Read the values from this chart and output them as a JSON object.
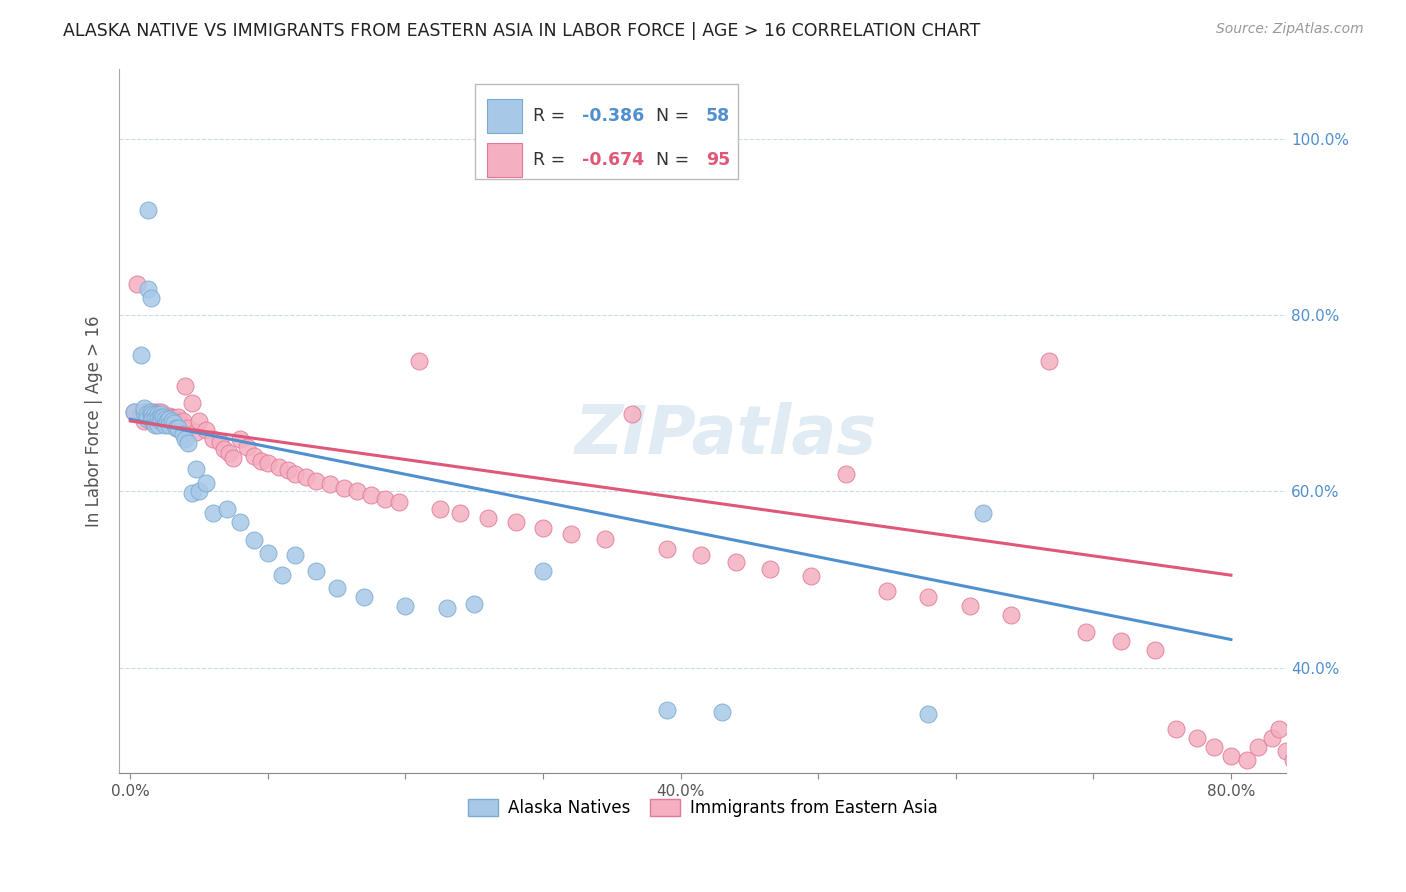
{
  "title": "ALASKA NATIVE VS IMMIGRANTS FROM EASTERN ASIA IN LABOR FORCE | AGE > 16 CORRELATION CHART",
  "source": "Source: ZipAtlas.com",
  "ylabel": "In Labor Force | Age > 16",
  "xlabel_ticks": [
    "0.0%",
    "",
    "",
    "",
    "40.0%",
    "",
    "",
    "",
    "80.0%"
  ],
  "xlabel_vals": [
    0.0,
    0.1,
    0.2,
    0.3,
    0.4,
    0.5,
    0.6,
    0.7,
    0.8
  ],
  "ytick_labels": [
    "40.0%",
    "60.0%",
    "80.0%",
    "100.0%"
  ],
  "ytick_vals": [
    0.4,
    0.6,
    0.8,
    1.0
  ],
  "ylim": [
    0.28,
    1.08
  ],
  "xlim": [
    -0.008,
    0.84
  ],
  "series1_color": "#a8c8e8",
  "series1_edge": "#7aaacf",
  "series2_color": "#f4b0c0",
  "series2_edge": "#e07898",
  "line1_color": "#5090d0",
  "line2_color": "#e05878",
  "R1": -0.386,
  "N1": 58,
  "R2": -0.674,
  "N2": 95,
  "legend_label1": "Alaska Natives",
  "legend_label2": "Immigrants from Eastern Asia",
  "watermark": "ZIPatlas",
  "line1_x0": 0.0,
  "line1_x1": 0.8,
  "line1_y0": 0.682,
  "line1_y1": 0.432,
  "line2_x0": 0.0,
  "line2_x1": 0.8,
  "line2_y0": 0.68,
  "line2_y1": 0.505,
  "series1_x": [
    0.003,
    0.008,
    0.01,
    0.01,
    0.012,
    0.012,
    0.013,
    0.013,
    0.015,
    0.015,
    0.015,
    0.015,
    0.016,
    0.016,
    0.018,
    0.018,
    0.018,
    0.02,
    0.02,
    0.02,
    0.022,
    0.022,
    0.022,
    0.024,
    0.025,
    0.025,
    0.027,
    0.028,
    0.028,
    0.03,
    0.032,
    0.033,
    0.035,
    0.038,
    0.04,
    0.042,
    0.045,
    0.048,
    0.05,
    0.055,
    0.06,
    0.07,
    0.08,
    0.09,
    0.1,
    0.11,
    0.12,
    0.135,
    0.15,
    0.17,
    0.2,
    0.23,
    0.25,
    0.3,
    0.39,
    0.43,
    0.58,
    0.62
  ],
  "series1_y": [
    0.69,
    0.755,
    0.69,
    0.695,
    0.688,
    0.682,
    0.92,
    0.83,
    0.688,
    0.82,
    0.682,
    0.69,
    0.688,
    0.682,
    0.688,
    0.682,
    0.676,
    0.688,
    0.682,
    0.676,
    0.688,
    0.685,
    0.68,
    0.685,
    0.682,
    0.676,
    0.68,
    0.682,
    0.676,
    0.68,
    0.678,
    0.672,
    0.672,
    0.665,
    0.66,
    0.655,
    0.598,
    0.625,
    0.6,
    0.61,
    0.575,
    0.58,
    0.565,
    0.545,
    0.53,
    0.505,
    0.528,
    0.51,
    0.49,
    0.48,
    0.47,
    0.468,
    0.472,
    0.51,
    0.352,
    0.35,
    0.348,
    0.575
  ],
  "series2_x": [
    0.003,
    0.005,
    0.008,
    0.01,
    0.01,
    0.01,
    0.012,
    0.012,
    0.013,
    0.015,
    0.015,
    0.015,
    0.015,
    0.016,
    0.016,
    0.018,
    0.018,
    0.02,
    0.02,
    0.02,
    0.022,
    0.022,
    0.022,
    0.024,
    0.025,
    0.025,
    0.027,
    0.028,
    0.028,
    0.03,
    0.032,
    0.033,
    0.035,
    0.035,
    0.038,
    0.04,
    0.042,
    0.045,
    0.048,
    0.05,
    0.055,
    0.06,
    0.065,
    0.068,
    0.072,
    0.075,
    0.08,
    0.085,
    0.09,
    0.095,
    0.1,
    0.108,
    0.115,
    0.12,
    0.128,
    0.135,
    0.145,
    0.155,
    0.165,
    0.175,
    0.185,
    0.195,
    0.21,
    0.225,
    0.24,
    0.26,
    0.28,
    0.3,
    0.32,
    0.345,
    0.365,
    0.39,
    0.415,
    0.44,
    0.465,
    0.495,
    0.52,
    0.55,
    0.58,
    0.61,
    0.64,
    0.668,
    0.695,
    0.72,
    0.745,
    0.76,
    0.775,
    0.788,
    0.8,
    0.812,
    0.82,
    0.83,
    0.835,
    0.84,
    0.845
  ],
  "series2_y": [
    0.69,
    0.835,
    0.688,
    0.69,
    0.686,
    0.68,
    0.69,
    0.684,
    0.69,
    0.69,
    0.684,
    0.69,
    0.68,
    0.688,
    0.682,
    0.69,
    0.684,
    0.69,
    0.685,
    0.68,
    0.69,
    0.686,
    0.68,
    0.686,
    0.684,
    0.68,
    0.684,
    0.686,
    0.682,
    0.685,
    0.683,
    0.679,
    0.685,
    0.678,
    0.68,
    0.72,
    0.672,
    0.7,
    0.668,
    0.68,
    0.67,
    0.66,
    0.656,
    0.648,
    0.644,
    0.638,
    0.66,
    0.65,
    0.64,
    0.635,
    0.632,
    0.628,
    0.624,
    0.62,
    0.616,
    0.612,
    0.608,
    0.604,
    0.6,
    0.596,
    0.592,
    0.588,
    0.748,
    0.58,
    0.576,
    0.57,
    0.565,
    0.558,
    0.552,
    0.546,
    0.688,
    0.535,
    0.528,
    0.52,
    0.512,
    0.504,
    0.62,
    0.487,
    0.48,
    0.47,
    0.46,
    0.748,
    0.44,
    0.43,
    0.42,
    0.33,
    0.32,
    0.31,
    0.3,
    0.295,
    0.31,
    0.32,
    0.33,
    0.305,
    0.295
  ]
}
